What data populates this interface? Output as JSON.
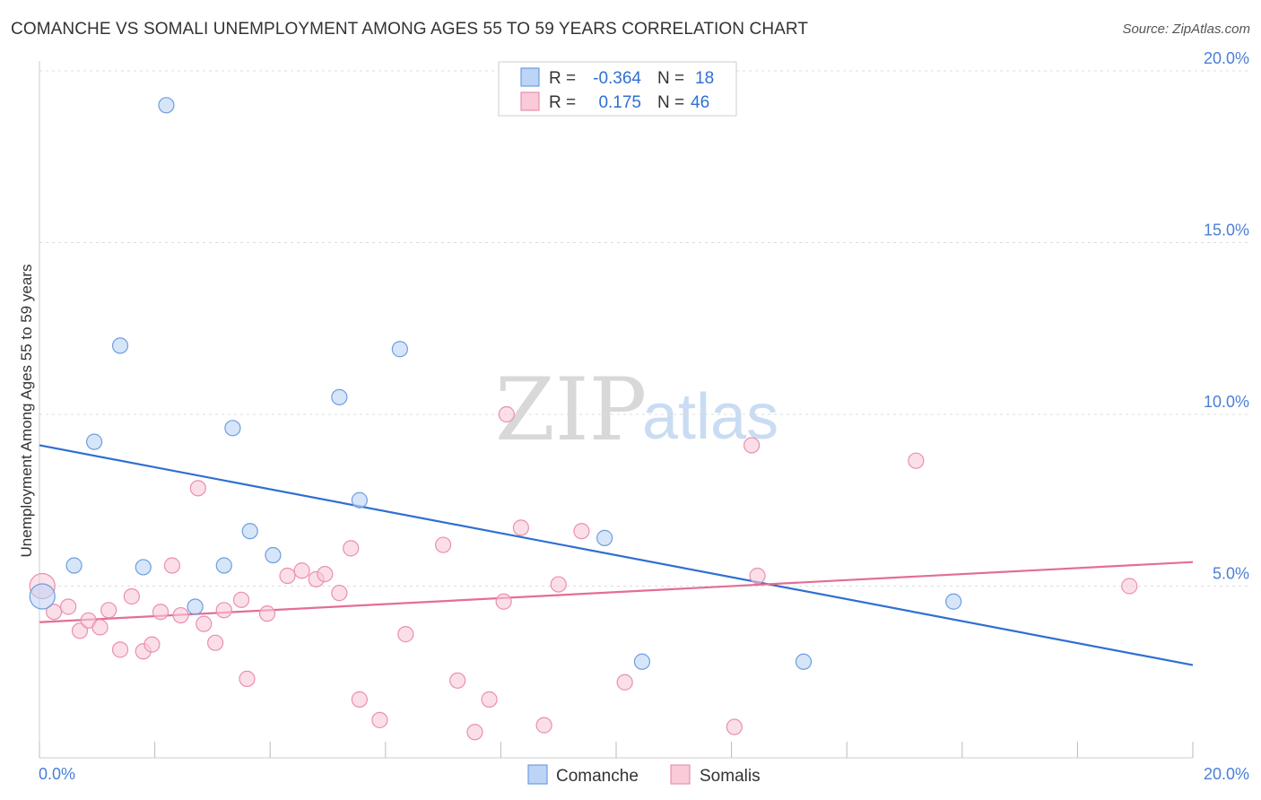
{
  "title": "COMANCHE VS SOMALI UNEMPLOYMENT AMONG AGES 55 TO 59 YEARS CORRELATION CHART",
  "source": "Source: ZipAtlas.com",
  "watermark": {
    "part1": "ZIP",
    "part2": "atlas"
  },
  "colors": {
    "comanche_fill": "#bcd4f5",
    "comanche_stroke": "#6c9ee0",
    "comanche_line": "#2f6fd0",
    "somali_fill": "#f9cad8",
    "somali_stroke": "#ea8fad",
    "somali_line": "#e36e96",
    "grid": "#dcdcdc",
    "tick_label": "#4a7fd6"
  },
  "legend": {
    "r_label": "R =",
    "n_label": "N =",
    "comanche_r": "-0.364",
    "comanche_n": "18",
    "somali_r": "0.175",
    "somali_n": "46"
  },
  "chart_data": {
    "type": "scatter",
    "title": "COMANCHE VS SOMALI UNEMPLOYMENT AMONG AGES 55 TO 59 YEARS CORRELATION CHART",
    "xlabel": "",
    "ylabel": "Unemployment Among Ages 55 to 59 years",
    "xlim": [
      0,
      20
    ],
    "ylim": [
      0,
      20
    ],
    "x_tick_labels": [
      "0.0%",
      "20.0%"
    ],
    "y_ticks": [
      {
        "value": 5,
        "label": "5.0%"
      },
      {
        "value": 10,
        "label": "10.0%"
      },
      {
        "value": 15,
        "label": "15.0%"
      },
      {
        "value": 20,
        "label": "20.0%"
      }
    ],
    "grid": true,
    "series": [
      {
        "name": "Comanche",
        "r": -0.364,
        "n": 18,
        "trend": {
          "x": [
            0,
            20
          ],
          "y": [
            9.1,
            2.7
          ]
        },
        "points": [
          [
            0.05,
            4.7
          ],
          [
            0.6,
            5.6
          ],
          [
            0.95,
            9.2
          ],
          [
            1.4,
            12.0
          ],
          [
            1.8,
            5.55
          ],
          [
            2.2,
            19.0
          ],
          [
            2.7,
            4.4
          ],
          [
            3.2,
            5.6
          ],
          [
            3.35,
            9.6
          ],
          [
            3.65,
            6.6
          ],
          [
            4.05,
            5.9
          ],
          [
            5.2,
            10.5
          ],
          [
            5.55,
            7.5
          ],
          [
            6.25,
            11.9
          ],
          [
            9.8,
            6.4
          ],
          [
            10.45,
            2.8
          ],
          [
            13.25,
            2.8
          ],
          [
            15.85,
            4.55
          ]
        ]
      },
      {
        "name": "Somalis",
        "r": 0.175,
        "n": 46,
        "trend": {
          "x": [
            0,
            20
          ],
          "y": [
            3.95,
            5.7
          ]
        },
        "points": [
          [
            0.05,
            5.0
          ],
          [
            0.25,
            4.25
          ],
          [
            0.5,
            4.4
          ],
          [
            0.7,
            3.7
          ],
          [
            0.85,
            4.0
          ],
          [
            1.05,
            3.8
          ],
          [
            1.2,
            4.3
          ],
          [
            1.4,
            3.15
          ],
          [
            1.6,
            4.7
          ],
          [
            1.8,
            3.1
          ],
          [
            1.95,
            3.3
          ],
          [
            2.1,
            4.25
          ],
          [
            2.3,
            5.6
          ],
          [
            2.45,
            4.15
          ],
          [
            2.75,
            7.85
          ],
          [
            2.85,
            3.9
          ],
          [
            3.05,
            3.35
          ],
          [
            3.2,
            4.3
          ],
          [
            3.5,
            4.6
          ],
          [
            3.6,
            2.3
          ],
          [
            3.95,
            4.2
          ],
          [
            4.3,
            5.3
          ],
          [
            4.55,
            5.45
          ],
          [
            4.8,
            5.2
          ],
          [
            4.95,
            5.35
          ],
          [
            5.2,
            4.8
          ],
          [
            5.4,
            6.1
          ],
          [
            5.55,
            1.7
          ],
          [
            5.9,
            1.1
          ],
          [
            6.35,
            3.6
          ],
          [
            7.0,
            6.2
          ],
          [
            7.25,
            2.25
          ],
          [
            7.55,
            0.75
          ],
          [
            7.8,
            1.7
          ],
          [
            8.05,
            4.55
          ],
          [
            8.1,
            10.0
          ],
          [
            8.35,
            6.7
          ],
          [
            8.75,
            0.95
          ],
          [
            9.0,
            5.05
          ],
          [
            9.4,
            6.6
          ],
          [
            10.15,
            2.2
          ],
          [
            12.05,
            0.9
          ],
          [
            12.35,
            9.1
          ],
          [
            12.45,
            5.3
          ],
          [
            15.2,
            8.65
          ],
          [
            18.9,
            5.0
          ]
        ]
      }
    ]
  },
  "bottom_legend": {
    "comanche": "Comanche",
    "somalis": "Somalis"
  }
}
